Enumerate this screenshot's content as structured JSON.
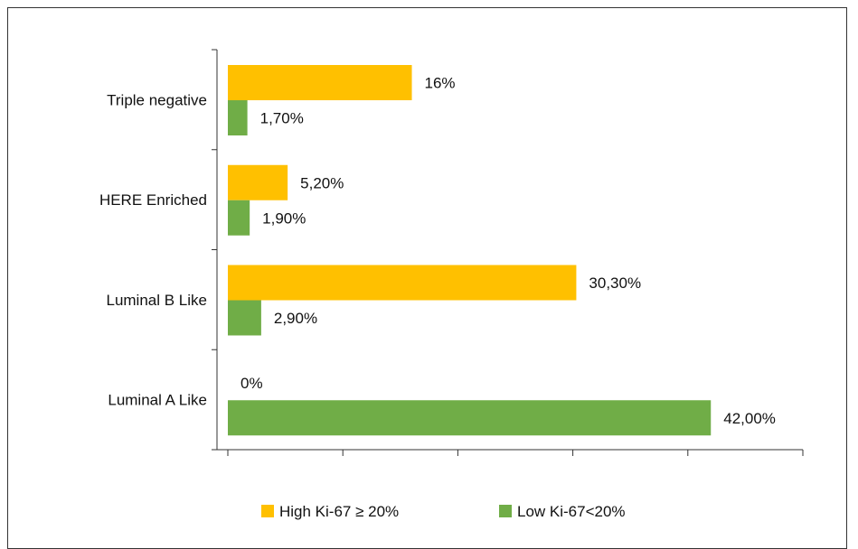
{
  "chart_data": {
    "type": "bar",
    "orientation": "horizontal",
    "categories": [
      "Triple negative",
      "HERE Enriched",
      "Luminal B Like",
      "Luminal A Like"
    ],
    "series": [
      {
        "name": "High Ki-67 ≥ 20%",
        "color": "#FFC000",
        "values": [
          16,
          5.2,
          30.3,
          0
        ],
        "labels": [
          "16%",
          "5,20%",
          "30,30%",
          "0%"
        ]
      },
      {
        "name": "Low Ki-67<20%",
        "color": "#70AD47",
        "values": [
          1.7,
          1.9,
          2.9,
          42.0
        ],
        "labels": [
          "1,70%",
          "1,90%",
          "2,90%",
          "42,00%"
        ]
      }
    ],
    "xlim": [
      0,
      50
    ],
    "x_tick_count": 6,
    "legend_position": "bottom",
    "grid": false,
    "title": "",
    "xlabel": "",
    "ylabel": ""
  }
}
